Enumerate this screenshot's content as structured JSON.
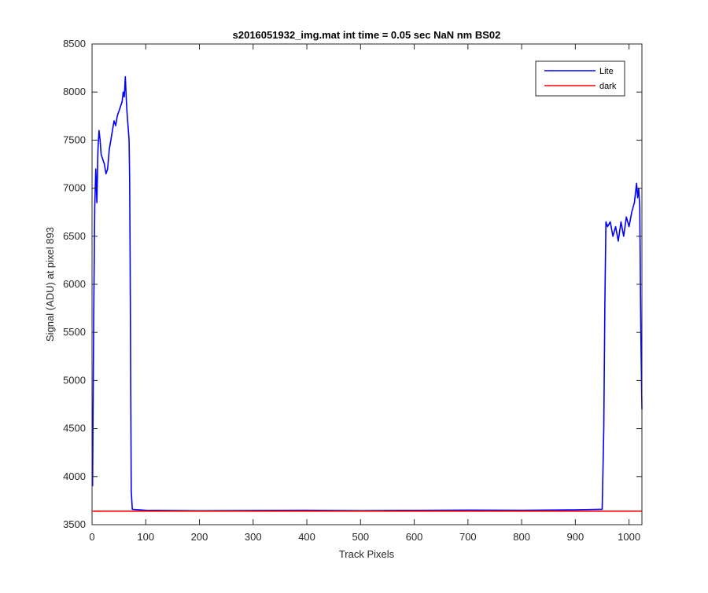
{
  "chart_data": {
    "type": "line",
    "title": "s2016051932_img.mat int time = 0.05 sec  NaN nm BS02",
    "xlabel": "Track Pixels",
    "ylabel": "Signal (ADU) at pixel 893",
    "xlim": [
      0,
      1024
    ],
    "ylim": [
      3500,
      8500
    ],
    "xticks": [
      0,
      100,
      200,
      300,
      400,
      500,
      600,
      700,
      800,
      900,
      1000
    ],
    "yticks": [
      3500,
      4000,
      4500,
      5000,
      5500,
      6000,
      6500,
      7000,
      7500,
      8000,
      8500
    ],
    "grid": false,
    "legend_position": "top-right",
    "series": [
      {
        "name": "Lite",
        "color": "#0000ff",
        "x": [
          1,
          3,
          5,
          7,
          9,
          11,
          13,
          15,
          17,
          20,
          23,
          26,
          29,
          32,
          35,
          38,
          41,
          44,
          47,
          50,
          53,
          56,
          58,
          60,
          62,
          64,
          65,
          67,
          69,
          70,
          71,
          72,
          73,
          75,
          100,
          200,
          300,
          400,
          500,
          600,
          700,
          800,
          900,
          950,
          953,
          955,
          957,
          960,
          965,
          970,
          975,
          980,
          985,
          990,
          995,
          1000,
          1005,
          1010,
          1014,
          1016,
          1018,
          1020,
          1022,
          1024
        ],
        "y": [
          3900,
          5600,
          6800,
          7200,
          6850,
          7400,
          7600,
          7500,
          7350,
          7300,
          7250,
          7150,
          7200,
          7400,
          7500,
          7600,
          7700,
          7650,
          7750,
          7800,
          7850,
          7900,
          8000,
          7950,
          8160,
          7900,
          7800,
          7650,
          7500,
          7100,
          6200,
          5000,
          3850,
          3660,
          3650,
          3645,
          3648,
          3650,
          3646,
          3649,
          3652,
          3650,
          3655,
          3660,
          4500,
          5800,
          6650,
          6600,
          6650,
          6500,
          6600,
          6450,
          6650,
          6500,
          6700,
          6600,
          6750,
          6850,
          7050,
          6900,
          7000,
          6800,
          5500,
          4700
        ]
      },
      {
        "name": "dark",
        "color": "#ff0000",
        "x": [
          1,
          1024
        ],
        "y": [
          3640,
          3640
        ]
      }
    ]
  }
}
